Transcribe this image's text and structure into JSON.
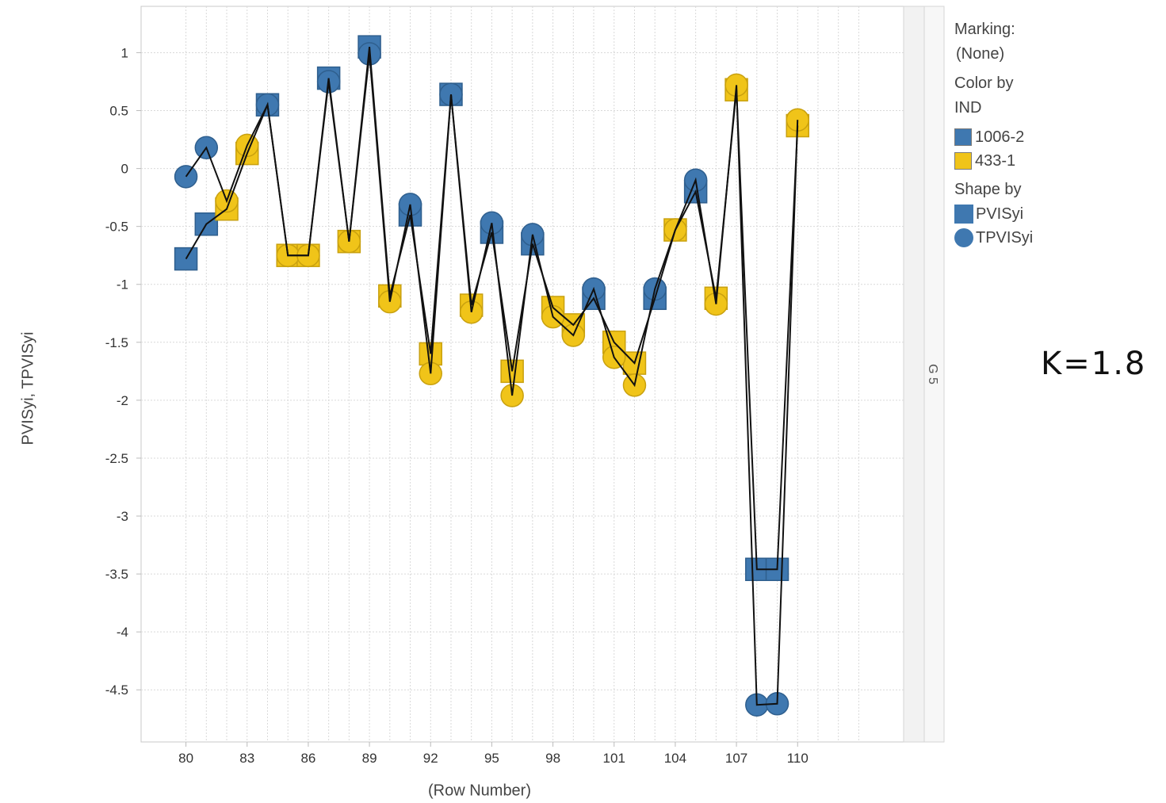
{
  "chart_data": {
    "type": "scatter",
    "xlabel": "(Row Number)",
    "ylabel": "PVISyi, TPVISyi",
    "xlim": [
      77.8,
      115.2
    ],
    "ylim": [
      -4.95,
      1.4
    ],
    "x_ticks": [
      "80",
      "83",
      "86",
      "89",
      "92",
      "95",
      "98",
      "101",
      "104",
      "107",
      "110"
    ],
    "y_ticks": [
      "1",
      "0.5",
      "0",
      "-0.5",
      "-1",
      "-1.5",
      "-2",
      "-2.5",
      "-3",
      "-3.5",
      "-4",
      "-4.5"
    ],
    "grid": true,
    "panel_label": "G 5",
    "colors": {
      "1006-2": "#3f78b0",
      "433-1": "#f0c419"
    },
    "series": [
      {
        "name": "PVISyi",
        "shape": "square",
        "points": [
          {
            "x": 80,
            "y": -0.78,
            "ind": "1006-2"
          },
          {
            "x": 81,
            "y": -0.48,
            "ind": "1006-2"
          },
          {
            "x": 82,
            "y": -0.35,
            "ind": "433-1"
          },
          {
            "x": 83,
            "y": 0.13,
            "ind": "433-1"
          },
          {
            "x": 84,
            "y": 0.55,
            "ind": "1006-2"
          },
          {
            "x": 85,
            "y": -0.75,
            "ind": "433-1"
          },
          {
            "x": 86,
            "y": -0.75,
            "ind": "433-1"
          },
          {
            "x": 87,
            "y": 0.78,
            "ind": "1006-2"
          },
          {
            "x": 88,
            "y": -0.63,
            "ind": "433-1"
          },
          {
            "x": 89,
            "y": 1.05,
            "ind": "1006-2"
          },
          {
            "x": 90,
            "y": -1.1,
            "ind": "433-1"
          },
          {
            "x": 91,
            "y": -0.4,
            "ind": "1006-2"
          },
          {
            "x": 92,
            "y": -1.6,
            "ind": "433-1"
          },
          {
            "x": 93,
            "y": 0.64,
            "ind": "1006-2"
          },
          {
            "x": 94,
            "y": -1.18,
            "ind": "433-1"
          },
          {
            "x": 95,
            "y": -0.55,
            "ind": "1006-2"
          },
          {
            "x": 96,
            "y": -1.75,
            "ind": "433-1"
          },
          {
            "x": 97,
            "y": -0.65,
            "ind": "1006-2"
          },
          {
            "x": 98,
            "y": -1.2,
            "ind": "433-1"
          },
          {
            "x": 99,
            "y": -1.35,
            "ind": "433-1"
          },
          {
            "x": 100,
            "y": -1.12,
            "ind": "1006-2"
          },
          {
            "x": 101,
            "y": -1.5,
            "ind": "433-1"
          },
          {
            "x": 102,
            "y": -1.68,
            "ind": "433-1"
          },
          {
            "x": 103,
            "y": -1.12,
            "ind": "1006-2"
          },
          {
            "x": 104,
            "y": -0.53,
            "ind": "433-1"
          },
          {
            "x": 105,
            "y": -0.2,
            "ind": "1006-2"
          },
          {
            "x": 106,
            "y": -1.12,
            "ind": "433-1"
          },
          {
            "x": 107,
            "y": 0.68,
            "ind": "433-1"
          },
          {
            "x": 108,
            "y": -3.46,
            "ind": "1006-2"
          },
          {
            "x": 109,
            "y": -3.46,
            "ind": "1006-2"
          },
          {
            "x": 110,
            "y": 0.37,
            "ind": "433-1"
          }
        ]
      },
      {
        "name": "TPVISyi",
        "shape": "circle",
        "points": [
          {
            "x": 80,
            "y": -0.07,
            "ind": "1006-2"
          },
          {
            "x": 81,
            "y": 0.18,
            "ind": "1006-2"
          },
          {
            "x": 82,
            "y": -0.28,
            "ind": "433-1"
          },
          {
            "x": 83,
            "y": 0.2,
            "ind": "433-1"
          },
          {
            "x": 84,
            "y": 0.55,
            "ind": "1006-2"
          },
          {
            "x": 85,
            "y": -0.75,
            "ind": "433-1"
          },
          {
            "x": 86,
            "y": -0.75,
            "ind": "433-1"
          },
          {
            "x": 87,
            "y": 0.75,
            "ind": "1006-2"
          },
          {
            "x": 88,
            "y": -0.63,
            "ind": "433-1"
          },
          {
            "x": 89,
            "y": 0.99,
            "ind": "1006-2"
          },
          {
            "x": 90,
            "y": -1.15,
            "ind": "433-1"
          },
          {
            "x": 91,
            "y": -0.31,
            "ind": "1006-2"
          },
          {
            "x": 92,
            "y": -1.77,
            "ind": "433-1"
          },
          {
            "x": 93,
            "y": 0.64,
            "ind": "1006-2"
          },
          {
            "x": 94,
            "y": -1.24,
            "ind": "433-1"
          },
          {
            "x": 95,
            "y": -0.47,
            "ind": "1006-2"
          },
          {
            "x": 96,
            "y": -1.96,
            "ind": "433-1"
          },
          {
            "x": 97,
            "y": -0.57,
            "ind": "1006-2"
          },
          {
            "x": 98,
            "y": -1.28,
            "ind": "433-1"
          },
          {
            "x": 99,
            "y": -1.44,
            "ind": "433-1"
          },
          {
            "x": 100,
            "y": -1.04,
            "ind": "1006-2"
          },
          {
            "x": 101,
            "y": -1.63,
            "ind": "433-1"
          },
          {
            "x": 102,
            "y": -1.87,
            "ind": "433-1"
          },
          {
            "x": 103,
            "y": -1.04,
            "ind": "1006-2"
          },
          {
            "x": 104,
            "y": -0.53,
            "ind": "433-1"
          },
          {
            "x": 105,
            "y": -0.1,
            "ind": "1006-2"
          },
          {
            "x": 106,
            "y": -1.17,
            "ind": "433-1"
          },
          {
            "x": 107,
            "y": 0.72,
            "ind": "433-1"
          },
          {
            "x": 108,
            "y": -4.63,
            "ind": "1006-2"
          },
          {
            "x": 109,
            "y": -4.62,
            "ind": "1006-2"
          },
          {
            "x": 110,
            "y": 0.42,
            "ind": "433-1"
          }
        ]
      }
    ]
  },
  "legend": {
    "marking_title": "Marking:",
    "marking_value": "(None)",
    "color_title_1": "Color by",
    "color_title_2": "IND",
    "color_items": [
      {
        "label": "1006-2",
        "color": "#3f78b0"
      },
      {
        "label": "433-1",
        "color": "#f0c419"
      }
    ],
    "shape_title": "Shape by",
    "shape_items": [
      {
        "label": "PVISyi",
        "icon": "square-icon"
      },
      {
        "label": "TPVISyi",
        "icon": "circle-icon"
      }
    ]
  },
  "annotation": {
    "k_value": "K=1.8"
  }
}
